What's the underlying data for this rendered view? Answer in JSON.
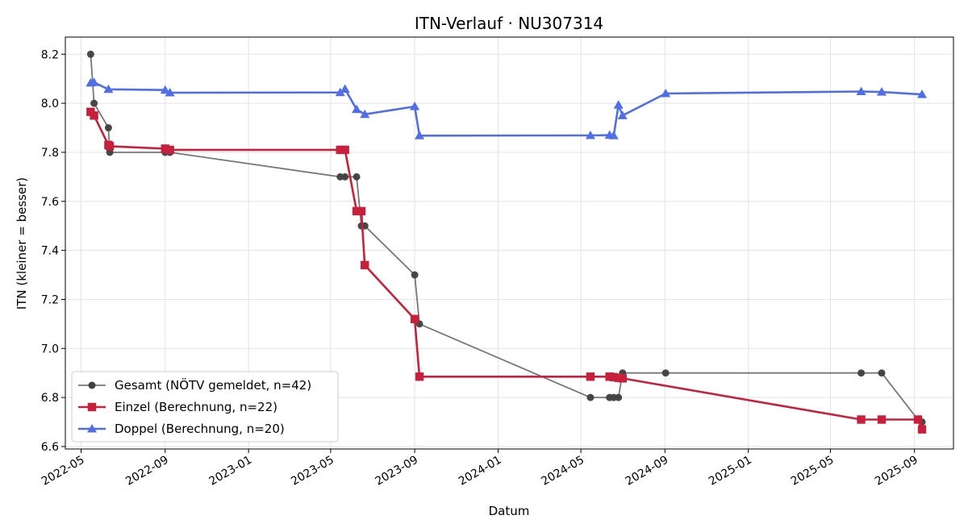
{
  "chart_data": {
    "type": "line",
    "title": "ITN-Verlauf · NU307314",
    "xlabel": "Datum",
    "ylabel": "ITN  (kleiner = besser)",
    "xlim": [
      "2022-04-08",
      "2025-10-28"
    ],
    "ylim": [
      6.59,
      8.27
    ],
    "grid": true,
    "legend_position": "lower-left",
    "x_ticks": [
      "2022-05",
      "2022-09",
      "2023-01",
      "2023-05",
      "2023-09",
      "2024-01",
      "2024-05",
      "2024-09",
      "2025-01",
      "2025-05",
      "2025-09"
    ],
    "y_ticks": [
      "6.6",
      "6.8",
      "7.0",
      "7.2",
      "7.4",
      "7.6",
      "7.8",
      "8.0",
      "8.2"
    ],
    "series": [
      {
        "name": "Gesamt (NÖTV gemeldet, n=42)",
        "color": "#555555",
        "marker": "circle",
        "points": [
          [
            "2022-05-15",
            8.2
          ],
          [
            "2022-05-20",
            8.0
          ],
          [
            "2022-06-10",
            7.9
          ],
          [
            "2022-06-12",
            7.8
          ],
          [
            "2022-09-01",
            7.8
          ],
          [
            "2022-09-08",
            7.8
          ],
          [
            "2023-05-15",
            7.7
          ],
          [
            "2023-05-22",
            7.7
          ],
          [
            "2023-06-08",
            7.7
          ],
          [
            "2023-06-15",
            7.5
          ],
          [
            "2023-06-20",
            7.5
          ],
          [
            "2023-09-01",
            7.3
          ],
          [
            "2023-09-08",
            7.1
          ],
          [
            "2024-05-15",
            6.8
          ],
          [
            "2024-06-12",
            6.8
          ],
          [
            "2024-06-18",
            6.8
          ],
          [
            "2024-06-25",
            6.8
          ],
          [
            "2024-07-01",
            6.9
          ],
          [
            "2024-09-02",
            6.9
          ],
          [
            "2025-06-15",
            6.9
          ],
          [
            "2025-07-15",
            6.9
          ],
          [
            "2025-09-06",
            6.71
          ],
          [
            "2025-09-12",
            6.7
          ]
        ]
      },
      {
        "name": "Einzel (Berechnung, n=22)",
        "color": "#c8203c",
        "marker": "square",
        "points": [
          [
            "2022-05-15",
            7.965
          ],
          [
            "2022-05-20",
            7.95
          ],
          [
            "2022-06-10",
            7.83
          ],
          [
            "2022-06-12",
            7.825
          ],
          [
            "2022-09-01",
            7.815
          ],
          [
            "2022-09-08",
            7.81
          ],
          [
            "2023-05-15",
            7.81
          ],
          [
            "2023-05-22",
            7.81
          ],
          [
            "2023-06-08",
            7.56
          ],
          [
            "2023-06-15",
            7.56
          ],
          [
            "2023-06-20",
            7.34
          ],
          [
            "2023-09-01",
            7.12
          ],
          [
            "2023-09-08",
            6.885
          ],
          [
            "2024-05-15",
            6.885
          ],
          [
            "2024-06-12",
            6.885
          ],
          [
            "2024-06-18",
            6.883
          ],
          [
            "2024-06-25",
            6.88
          ],
          [
            "2024-07-01",
            6.878
          ],
          [
            "2025-06-15",
            6.71
          ],
          [
            "2025-07-15",
            6.71
          ],
          [
            "2025-09-06",
            6.71
          ],
          [
            "2025-09-12",
            6.67
          ]
        ]
      },
      {
        "name": "Doppel (Berechnung, n=20)",
        "color": "#4f6ee8",
        "marker": "triangle",
        "points": [
          [
            "2022-05-15",
            8.083
          ],
          [
            "2022-05-20",
            8.085
          ],
          [
            "2022-06-10",
            8.057
          ],
          [
            "2022-09-01",
            8.054
          ],
          [
            "2022-09-08",
            8.043
          ],
          [
            "2023-05-15",
            8.044
          ],
          [
            "2023-05-22",
            8.058
          ],
          [
            "2023-06-08",
            7.975
          ],
          [
            "2023-06-20",
            7.955
          ],
          [
            "2023-09-01",
            7.987
          ],
          [
            "2023-09-08",
            7.868
          ],
          [
            "2024-05-15",
            7.869
          ],
          [
            "2024-06-12",
            7.87
          ],
          [
            "2024-06-18",
            7.868
          ],
          [
            "2024-06-25",
            7.993
          ],
          [
            "2024-07-01",
            7.95
          ],
          [
            "2024-09-02",
            8.04
          ],
          [
            "2025-06-15",
            8.048
          ],
          [
            "2025-07-15",
            8.046
          ],
          [
            "2025-09-12",
            8.036
          ]
        ]
      }
    ]
  }
}
